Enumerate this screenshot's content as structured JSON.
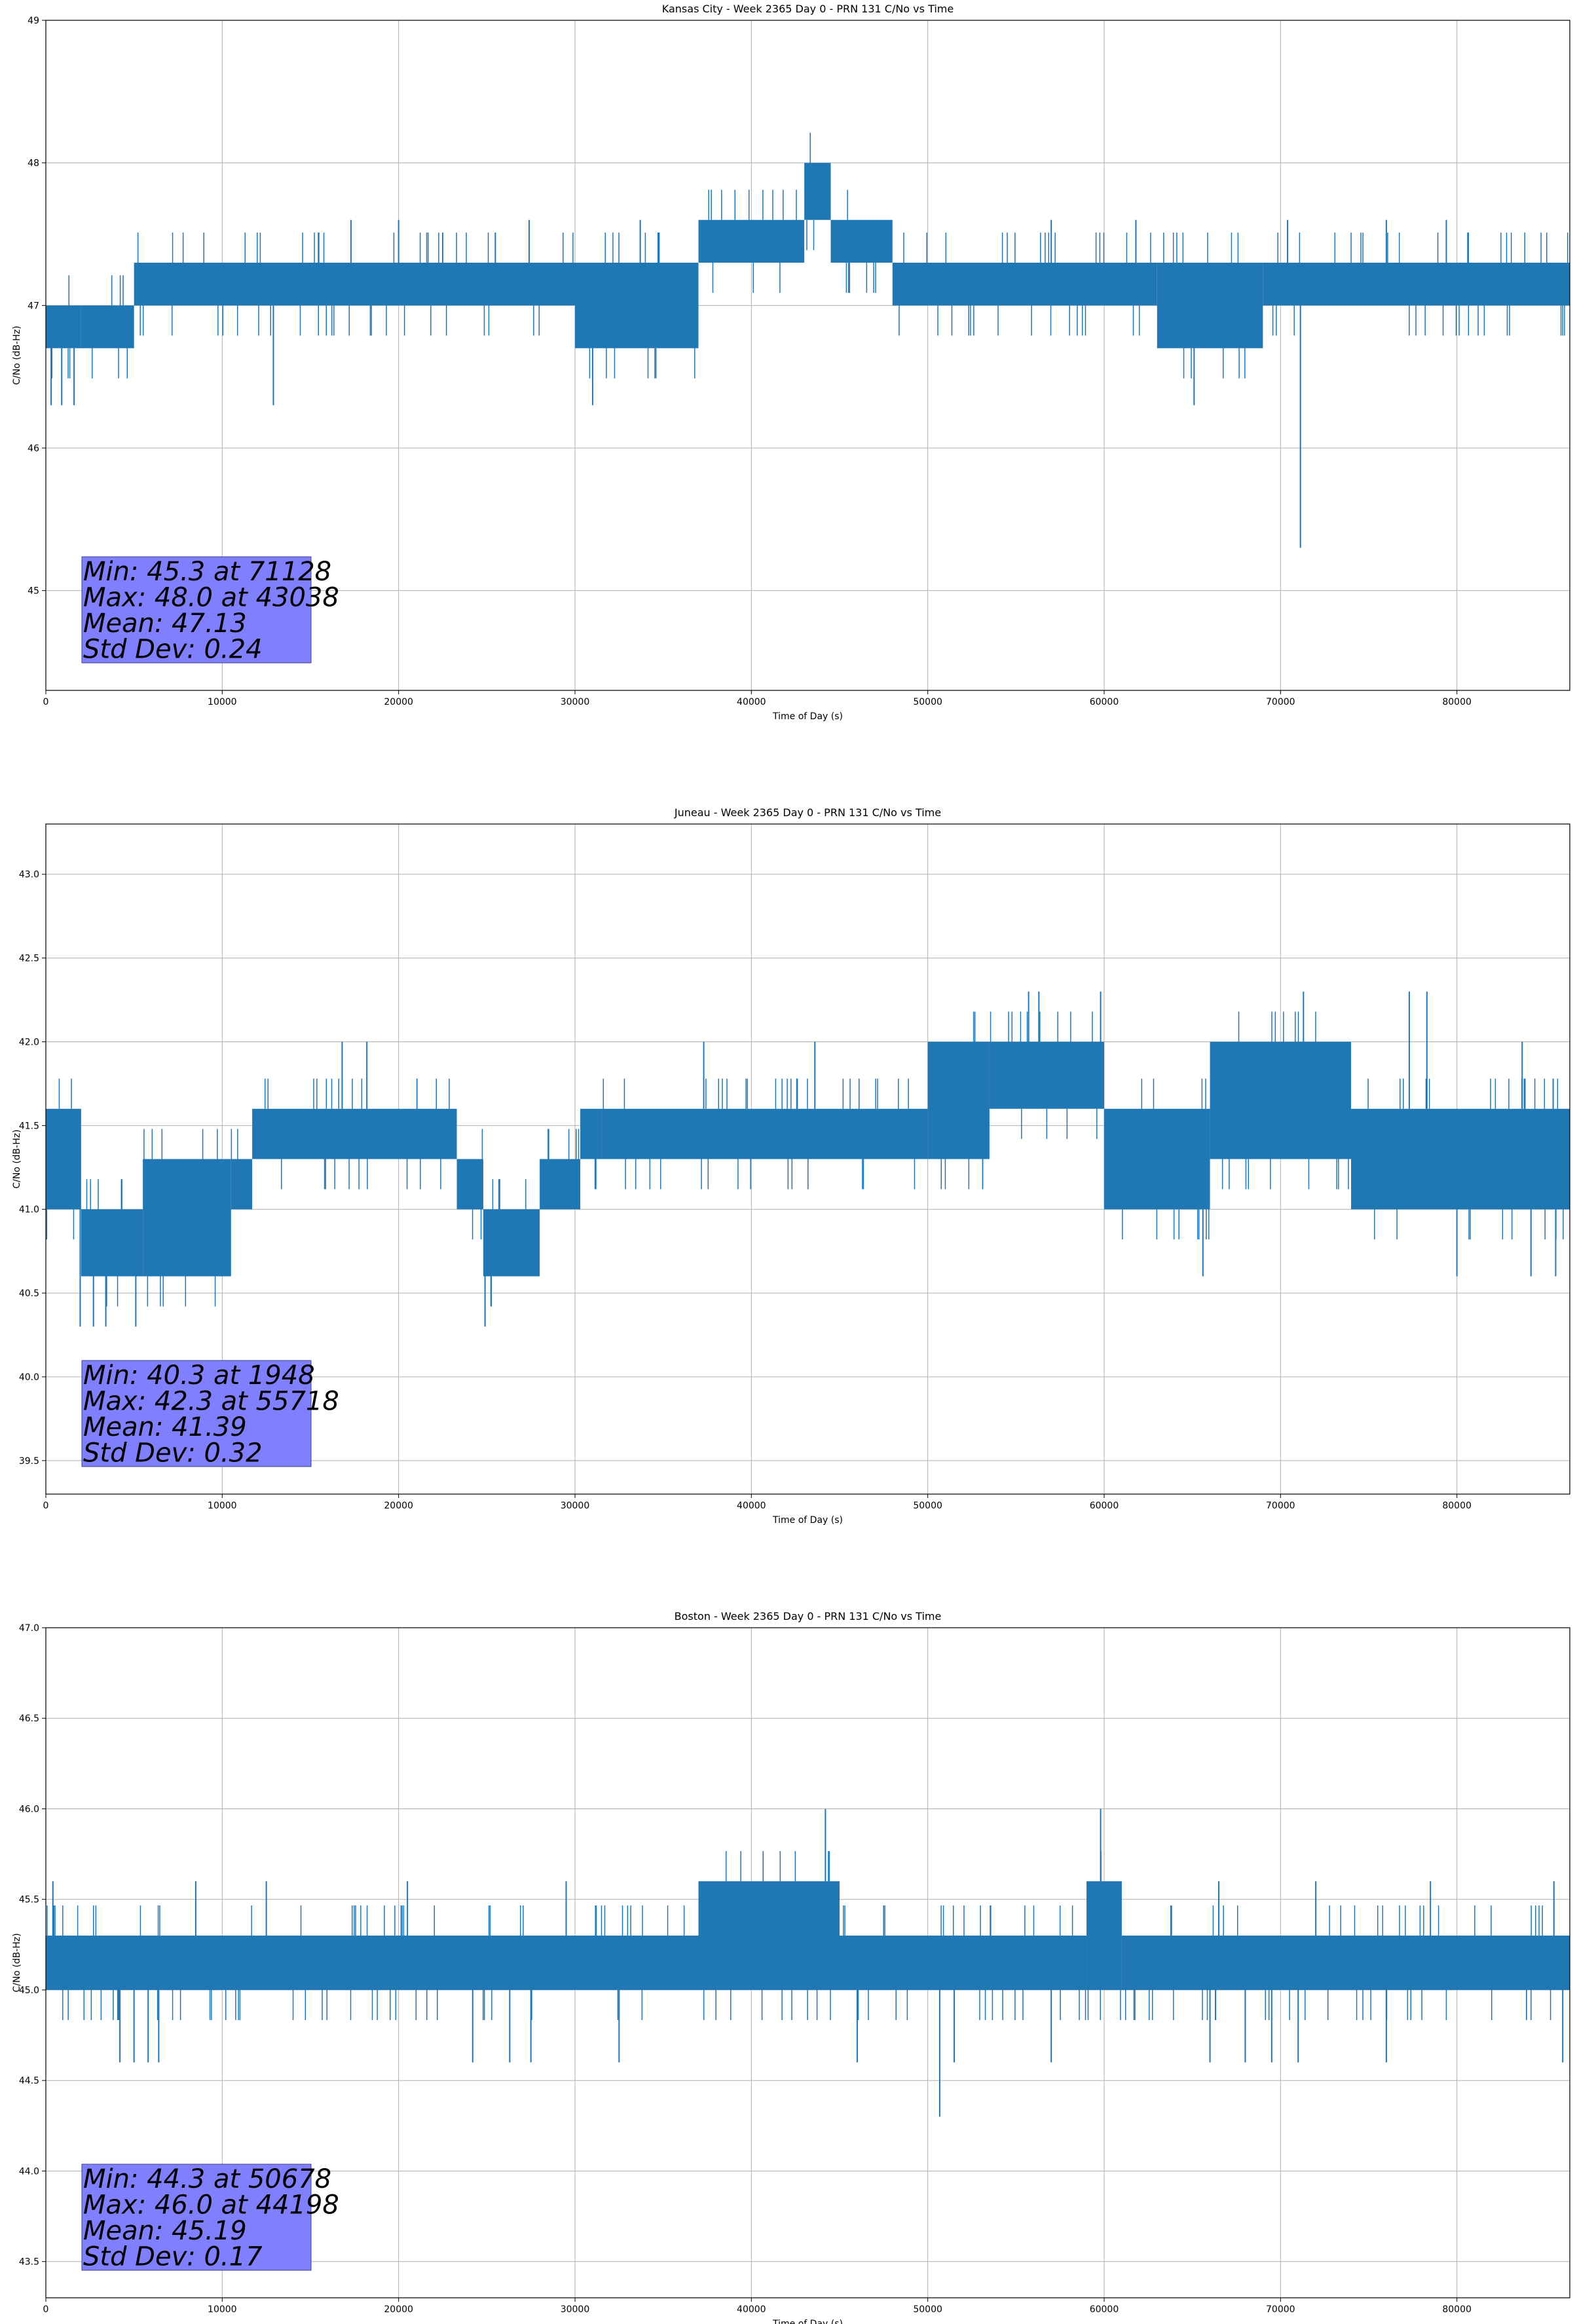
{
  "chart_data": [
    {
      "type": "line",
      "title": "Kansas City - Week 2365 Day 0 - PRN 131 C/No vs Time",
      "xlabel": "Time of Day (s)",
      "ylabel": "C/No (dB-Hz)",
      "xlim": [
        0,
        86400
      ],
      "ylim": [
        44.3,
        49
      ],
      "xticks": [
        0,
        10000,
        20000,
        30000,
        40000,
        50000,
        60000,
        70000,
        80000
      ],
      "yticks": [
        45,
        46,
        47,
        48,
        49
      ],
      "ytick_labels": [
        "45",
        "46",
        "47",
        "48",
        "49"
      ],
      "grid": true,
      "color": "#1f77b4",
      "band_segments": [
        {
          "x": [
            0,
            2000
          ],
          "low": 46.7,
          "high": 47.0
        },
        {
          "x": [
            2000,
            5000
          ],
          "low": 46.7,
          "high": 47.0
        },
        {
          "x": [
            5000,
            30000
          ],
          "low": 47.0,
          "high": 47.3
        },
        {
          "x": [
            30000,
            37000
          ],
          "low": 46.7,
          "high": 47.3
        },
        {
          "x": [
            37000,
            43000
          ],
          "low": 47.3,
          "high": 47.6
        },
        {
          "x": [
            43000,
            44500
          ],
          "low": 47.6,
          "high": 48.0
        },
        {
          "x": [
            44500,
            48000
          ],
          "low": 47.3,
          "high": 47.6
        },
        {
          "x": [
            48000,
            63000
          ],
          "low": 47.0,
          "high": 47.3
        },
        {
          "x": [
            63000,
            69000
          ],
          "low": 46.7,
          "high": 47.3
        },
        {
          "x": [
            69000,
            86400
          ],
          "low": 47.0,
          "high": 47.3
        }
      ],
      "spikes": [
        {
          "x": 300,
          "y": 46.3
        },
        {
          "x": 900,
          "y": 46.3
        },
        {
          "x": 1600,
          "y": 46.3
        },
        {
          "x": 12900,
          "y": 46.3
        },
        {
          "x": 31000,
          "y": 46.3
        },
        {
          "x": 65100,
          "y": 46.3
        },
        {
          "x": 71128,
          "y": 45.3
        },
        {
          "x": 17300,
          "y": 47.6
        },
        {
          "x": 20000,
          "y": 47.6
        },
        {
          "x": 27400,
          "y": 47.6
        },
        {
          "x": 33700,
          "y": 47.6
        },
        {
          "x": 57000,
          "y": 47.6
        },
        {
          "x": 61800,
          "y": 47.6
        },
        {
          "x": 70400,
          "y": 47.6
        },
        {
          "x": 76000,
          "y": 47.6
        },
        {
          "x": 79400,
          "y": 47.6
        }
      ],
      "stats": {
        "min": "Min: 45.3 at 71128",
        "max": "Max: 48.0 at 43038",
        "mean": "Mean: 47.13",
        "std": "Std Dev: 0.24"
      }
    },
    {
      "type": "line",
      "title": "Juneau - Week 2365 Day 0 - PRN 131 C/No vs Time",
      "xlabel": "Time of Day (s)",
      "ylabel": "C/No (dB-Hz)",
      "xlim": [
        0,
        86400
      ],
      "ylim": [
        39.3,
        43.3
      ],
      "xticks": [
        0,
        10000,
        20000,
        30000,
        40000,
        50000,
        60000,
        70000,
        80000
      ],
      "yticks": [
        39.5,
        40.0,
        40.5,
        41.0,
        41.5,
        42.0,
        42.5,
        43.0
      ],
      "ytick_labels": [
        "39.5",
        "40.0",
        "40.5",
        "41.0",
        "41.5",
        "42.0",
        "42.5",
        "43.0"
      ],
      "grid": true,
      "color": "#1f77b4",
      "band_segments": [
        {
          "x": [
            0,
            2000
          ],
          "low": 41.0,
          "high": 41.6
        },
        {
          "x": [
            2000,
            5500
          ],
          "low": 40.6,
          "high": 41.0
        },
        {
          "x": [
            5500,
            10500
          ],
          "low": 40.6,
          "high": 41.3
        },
        {
          "x": [
            10500,
            11700
          ],
          "low": 41.0,
          "high": 41.3
        },
        {
          "x": [
            11700,
            23300
          ],
          "low": 41.3,
          "high": 41.6
        },
        {
          "x": [
            23300,
            24800
          ],
          "low": 41.0,
          "high": 41.3
        },
        {
          "x": [
            24800,
            28000
          ],
          "low": 40.6,
          "high": 41.0
        },
        {
          "x": [
            28000,
            30300
          ],
          "low": 41.0,
          "high": 41.3
        },
        {
          "x": [
            30300,
            31500
          ],
          "low": 41.3,
          "high": 41.6
        },
        {
          "x": [
            31500,
            50000
          ],
          "low": 41.3,
          "high": 41.6
        },
        {
          "x": [
            50000,
            53500
          ],
          "low": 41.3,
          "high": 42.0
        },
        {
          "x": [
            53500,
            60000
          ],
          "low": 41.6,
          "high": 42.0
        },
        {
          "x": [
            60000,
            66000
          ],
          "low": 41.0,
          "high": 41.6
        },
        {
          "x": [
            66000,
            74000
          ],
          "low": 41.3,
          "high": 42.0
        },
        {
          "x": [
            74000,
            86400
          ],
          "low": 41.0,
          "high": 41.6
        }
      ],
      "spikes": [
        {
          "x": 1948,
          "y": 40.3
        },
        {
          "x": 2700,
          "y": 40.3
        },
        {
          "x": 3400,
          "y": 40.3
        },
        {
          "x": 5100,
          "y": 40.3
        },
        {
          "x": 24900,
          "y": 40.3
        },
        {
          "x": 65600,
          "y": 40.6
        },
        {
          "x": 80000,
          "y": 40.6
        },
        {
          "x": 84200,
          "y": 40.6
        },
        {
          "x": 85600,
          "y": 40.6
        },
        {
          "x": 55718,
          "y": 42.3
        },
        {
          "x": 56300,
          "y": 42.3
        },
        {
          "x": 59800,
          "y": 42.3
        },
        {
          "x": 71300,
          "y": 42.3
        },
        {
          "x": 77300,
          "y": 42.3
        },
        {
          "x": 78300,
          "y": 42.3
        },
        {
          "x": 16800,
          "y": 42.0
        },
        {
          "x": 18200,
          "y": 42.0
        },
        {
          "x": 37300,
          "y": 42.0
        },
        {
          "x": 43600,
          "y": 42.0
        },
        {
          "x": 83700,
          "y": 42.0
        }
      ],
      "stats": {
        "min": "Min: 40.3 at 1948",
        "max": "Max: 42.3 at 55718",
        "mean": "Mean: 41.39",
        "std": "Std Dev: 0.32"
      }
    },
    {
      "type": "line",
      "title": "Boston - Week 2365 Day 0 - PRN 131 C/No vs Time",
      "xlabel": "Time of Day (s)",
      "ylabel": "C/No (dB-Hz)",
      "xlim": [
        0,
        86400
      ],
      "ylim": [
        43.3,
        47.0
      ],
      "xticks": [
        0,
        10000,
        20000,
        30000,
        40000,
        50000,
        60000,
        70000,
        80000
      ],
      "yticks": [
        43.5,
        44.0,
        44.5,
        45.0,
        45.5,
        46.0,
        46.5,
        47.0
      ],
      "ytick_labels": [
        "43.5",
        "44.0",
        "44.5",
        "45.0",
        "45.5",
        "46.0",
        "46.5",
        "47.0"
      ],
      "grid": true,
      "color": "#1f77b4",
      "band_segments": [
        {
          "x": [
            0,
            37000
          ],
          "low": 45.0,
          "high": 45.3
        },
        {
          "x": [
            37000,
            45000
          ],
          "low": 45.0,
          "high": 45.6
        },
        {
          "x": [
            45000,
            59000
          ],
          "low": 45.0,
          "high": 45.3
        },
        {
          "x": [
            59000,
            61000
          ],
          "low": 45.0,
          "high": 45.6
        },
        {
          "x": [
            61000,
            86400
          ],
          "low": 45.0,
          "high": 45.3
        }
      ],
      "spikes": [
        {
          "x": 4200,
          "y": 44.6
        },
        {
          "x": 5000,
          "y": 44.6
        },
        {
          "x": 5800,
          "y": 44.6
        },
        {
          "x": 6400,
          "y": 44.6
        },
        {
          "x": 24200,
          "y": 44.6
        },
        {
          "x": 26300,
          "y": 44.6
        },
        {
          "x": 27500,
          "y": 44.6
        },
        {
          "x": 32500,
          "y": 44.6
        },
        {
          "x": 46000,
          "y": 44.6
        },
        {
          "x": 50678,
          "y": 44.3
        },
        {
          "x": 51500,
          "y": 44.6
        },
        {
          "x": 57000,
          "y": 44.6
        },
        {
          "x": 66000,
          "y": 44.6
        },
        {
          "x": 68000,
          "y": 44.6
        },
        {
          "x": 69500,
          "y": 44.6
        },
        {
          "x": 71000,
          "y": 44.6
        },
        {
          "x": 76000,
          "y": 44.6
        },
        {
          "x": 86000,
          "y": 44.6
        },
        {
          "x": 44198,
          "y": 46.0
        },
        {
          "x": 59800,
          "y": 46.0
        },
        {
          "x": 400,
          "y": 45.6
        },
        {
          "x": 8500,
          "y": 45.6
        },
        {
          "x": 12500,
          "y": 45.6
        },
        {
          "x": 20500,
          "y": 45.6
        },
        {
          "x": 29500,
          "y": 45.6
        },
        {
          "x": 66500,
          "y": 45.6
        },
        {
          "x": 72000,
          "y": 45.6
        },
        {
          "x": 78500,
          "y": 45.6
        },
        {
          "x": 85500,
          "y": 45.6
        }
      ],
      "stats": {
        "min": "Min: 44.3 at 50678",
        "max": "Max: 46.0 at 44198",
        "mean": "Mean: 45.19",
        "std": "Std Dev: 0.17"
      }
    }
  ]
}
